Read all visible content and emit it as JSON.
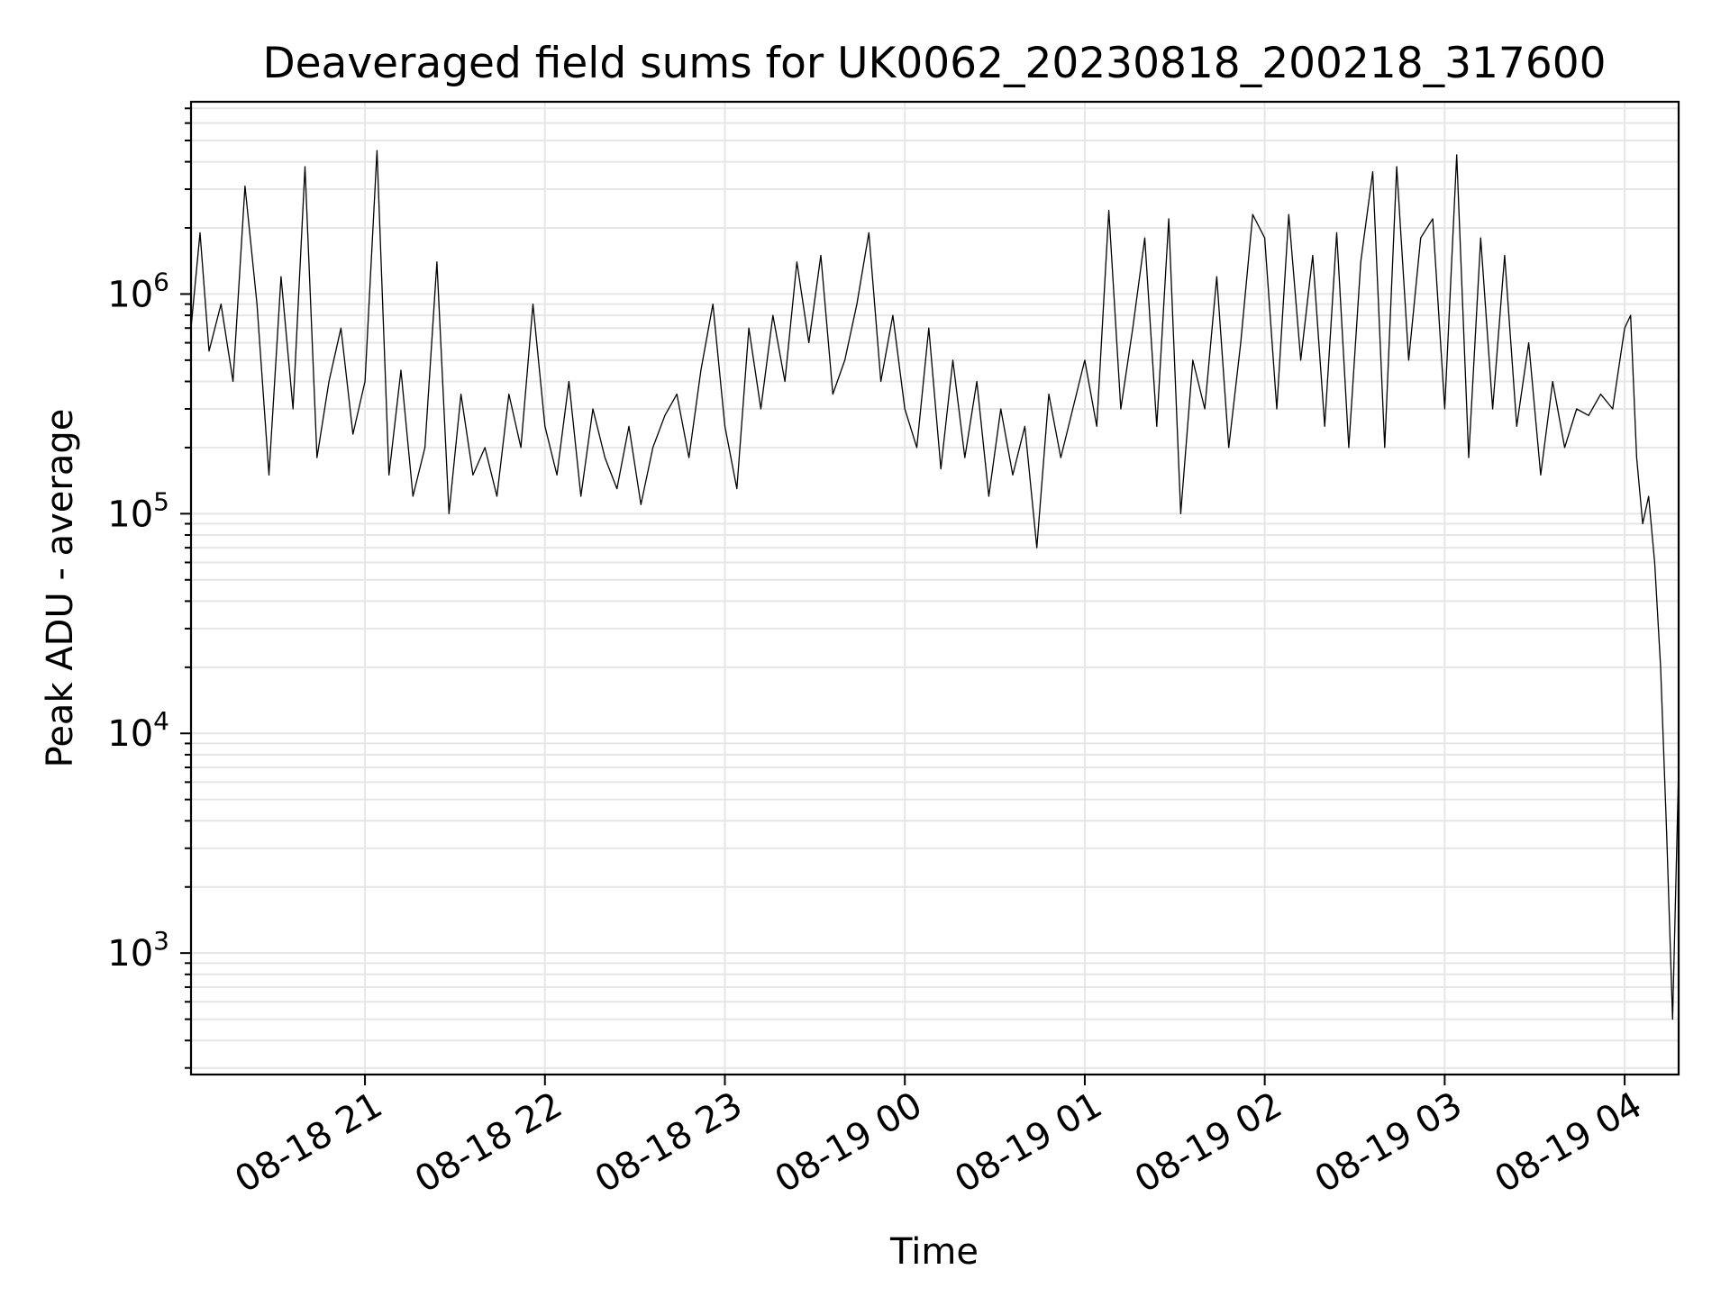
{
  "chart_data": {
    "type": "line",
    "title": "Deaveraged field sums for UK0062_20230818_200218_317600",
    "xlabel": "Time",
    "ylabel": "Peak ADU - average",
    "yscale": "log",
    "ylim": [
      280,
      7500000
    ],
    "xlim": [
      "2023-08-18 20:02:18",
      "2023-08-19 04:18:00"
    ],
    "grid": "major and minor",
    "x_ticks": [
      "2023-08-18 21:00",
      "2023-08-18 22:00",
      "2023-08-18 23:00",
      "2023-08-19 00:00",
      "2023-08-19 01:00",
      "2023-08-19 02:00",
      "2023-08-19 03:00",
      "2023-08-19 04:00"
    ],
    "x_tick_labels": [
      "08-18 21",
      "08-18 22",
      "08-18 23",
      "08-19 00",
      "08-19 01",
      "08-19 02",
      "08-19 03",
      "08-19 04"
    ],
    "y_ticks": [
      {
        "value": 1000,
        "base": "10",
        "exp": "3"
      },
      {
        "value": 10000,
        "base": "10",
        "exp": "4"
      },
      {
        "value": 100000,
        "base": "10",
        "exp": "5"
      },
      {
        "value": 1000000,
        "base": "10",
        "exp": "6"
      }
    ],
    "series": [
      {
        "color": "#000000",
        "x": [
          "2023-08-18 20:02",
          "2023-08-18 20:05",
          "2023-08-18 20:08",
          "2023-08-18 20:12",
          "2023-08-18 20:16",
          "2023-08-18 20:20",
          "2023-08-18 20:24",
          "2023-08-18 20:28",
          "2023-08-18 20:32",
          "2023-08-18 20:36",
          "2023-08-18 20:40",
          "2023-08-18 20:44",
          "2023-08-18 20:48",
          "2023-08-18 20:52",
          "2023-08-18 20:56",
          "2023-08-18 21:00",
          "2023-08-18 21:04",
          "2023-08-18 21:08",
          "2023-08-18 21:12",
          "2023-08-18 21:16",
          "2023-08-18 21:20",
          "2023-08-18 21:24",
          "2023-08-18 21:28",
          "2023-08-18 21:32",
          "2023-08-18 21:36",
          "2023-08-18 21:40",
          "2023-08-18 21:44",
          "2023-08-18 21:48",
          "2023-08-18 21:52",
          "2023-08-18 21:56",
          "2023-08-18 22:00",
          "2023-08-18 22:04",
          "2023-08-18 22:08",
          "2023-08-18 22:12",
          "2023-08-18 22:16",
          "2023-08-18 22:20",
          "2023-08-18 22:24",
          "2023-08-18 22:28",
          "2023-08-18 22:32",
          "2023-08-18 22:36",
          "2023-08-18 22:40",
          "2023-08-18 22:44",
          "2023-08-18 22:48",
          "2023-08-18 22:52",
          "2023-08-18 22:56",
          "2023-08-18 23:00",
          "2023-08-18 23:04",
          "2023-08-18 23:08",
          "2023-08-18 23:12",
          "2023-08-18 23:16",
          "2023-08-18 23:20",
          "2023-08-18 23:24",
          "2023-08-18 23:28",
          "2023-08-18 23:32",
          "2023-08-18 23:36",
          "2023-08-18 23:40",
          "2023-08-18 23:44",
          "2023-08-18 23:48",
          "2023-08-18 23:52",
          "2023-08-18 23:56",
          "2023-08-19 00:00",
          "2023-08-19 00:04",
          "2023-08-19 00:08",
          "2023-08-19 00:12",
          "2023-08-19 00:16",
          "2023-08-19 00:20",
          "2023-08-19 00:24",
          "2023-08-19 00:28",
          "2023-08-19 00:32",
          "2023-08-19 00:36",
          "2023-08-19 00:40",
          "2023-08-19 00:44",
          "2023-08-19 00:48",
          "2023-08-19 00:52",
          "2023-08-19 00:56",
          "2023-08-19 01:00",
          "2023-08-19 01:04",
          "2023-08-19 01:08",
          "2023-08-19 01:12",
          "2023-08-19 01:16",
          "2023-08-19 01:20",
          "2023-08-19 01:24",
          "2023-08-19 01:28",
          "2023-08-19 01:32",
          "2023-08-19 01:36",
          "2023-08-19 01:40",
          "2023-08-19 01:44",
          "2023-08-19 01:48",
          "2023-08-19 01:52",
          "2023-08-19 01:56",
          "2023-08-19 02:00",
          "2023-08-19 02:04",
          "2023-08-19 02:08",
          "2023-08-19 02:12",
          "2023-08-19 02:16",
          "2023-08-19 02:20",
          "2023-08-19 02:24",
          "2023-08-19 02:28",
          "2023-08-19 02:32",
          "2023-08-19 02:36",
          "2023-08-19 02:40",
          "2023-08-19 02:44",
          "2023-08-19 02:48",
          "2023-08-19 02:52",
          "2023-08-19 02:56",
          "2023-08-19 03:00",
          "2023-08-19 03:04",
          "2023-08-19 03:08",
          "2023-08-19 03:12",
          "2023-08-19 03:16",
          "2023-08-19 03:20",
          "2023-08-19 03:24",
          "2023-08-19 03:28",
          "2023-08-19 03:32",
          "2023-08-19 03:36",
          "2023-08-19 03:40",
          "2023-08-19 03:44",
          "2023-08-19 03:48",
          "2023-08-19 03:52",
          "2023-08-19 03:56",
          "2023-08-19 04:00",
          "2023-08-19 04:02",
          "2023-08-19 04:04",
          "2023-08-19 04:06",
          "2023-08-19 04:08",
          "2023-08-19 04:10",
          "2023-08-19 04:12",
          "2023-08-19 04:14",
          "2023-08-19 04:16",
          "2023-08-19 04:18"
        ],
        "y": [
          700000,
          1900000,
          550000,
          900000,
          400000,
          3100000,
          900000,
          150000,
          1200000,
          300000,
          3800000,
          180000,
          400000,
          700000,
          230000,
          400000,
          4500000,
          150000,
          450000,
          120000,
          200000,
          1400000,
          100000,
          350000,
          150000,
          200000,
          120000,
          350000,
          200000,
          900000,
          250000,
          150000,
          400000,
          120000,
          300000,
          180000,
          130000,
          250000,
          110000,
          200000,
          280000,
          350000,
          180000,
          450000,
          900000,
          250000,
          130000,
          700000,
          300000,
          800000,
          400000,
          1400000,
          600000,
          1500000,
          350000,
          500000,
          900000,
          1900000,
          400000,
          800000,
          300000,
          200000,
          700000,
          160000,
          500000,
          180000,
          400000,
          120000,
          300000,
          150000,
          250000,
          70000,
          350000,
          180000,
          300000,
          500000,
          250000,
          2400000,
          300000,
          700000,
          1800000,
          250000,
          2200000,
          100000,
          500000,
          300000,
          1200000,
          200000,
          600000,
          2300000,
          1800000,
          300000,
          2300000,
          500000,
          1500000,
          250000,
          1900000,
          200000,
          1400000,
          3600000,
          200000,
          3800000,
          500000,
          1800000,
          2200000,
          300000,
          4300000,
          180000,
          1800000,
          300000,
          1500000,
          250000,
          600000,
          150000,
          400000,
          200000,
          300000,
          280000,
          350000,
          300000,
          700000,
          800000,
          180000,
          90000,
          120000,
          60000,
          20000,
          3500,
          500,
          7000
        ]
      }
    ]
  }
}
